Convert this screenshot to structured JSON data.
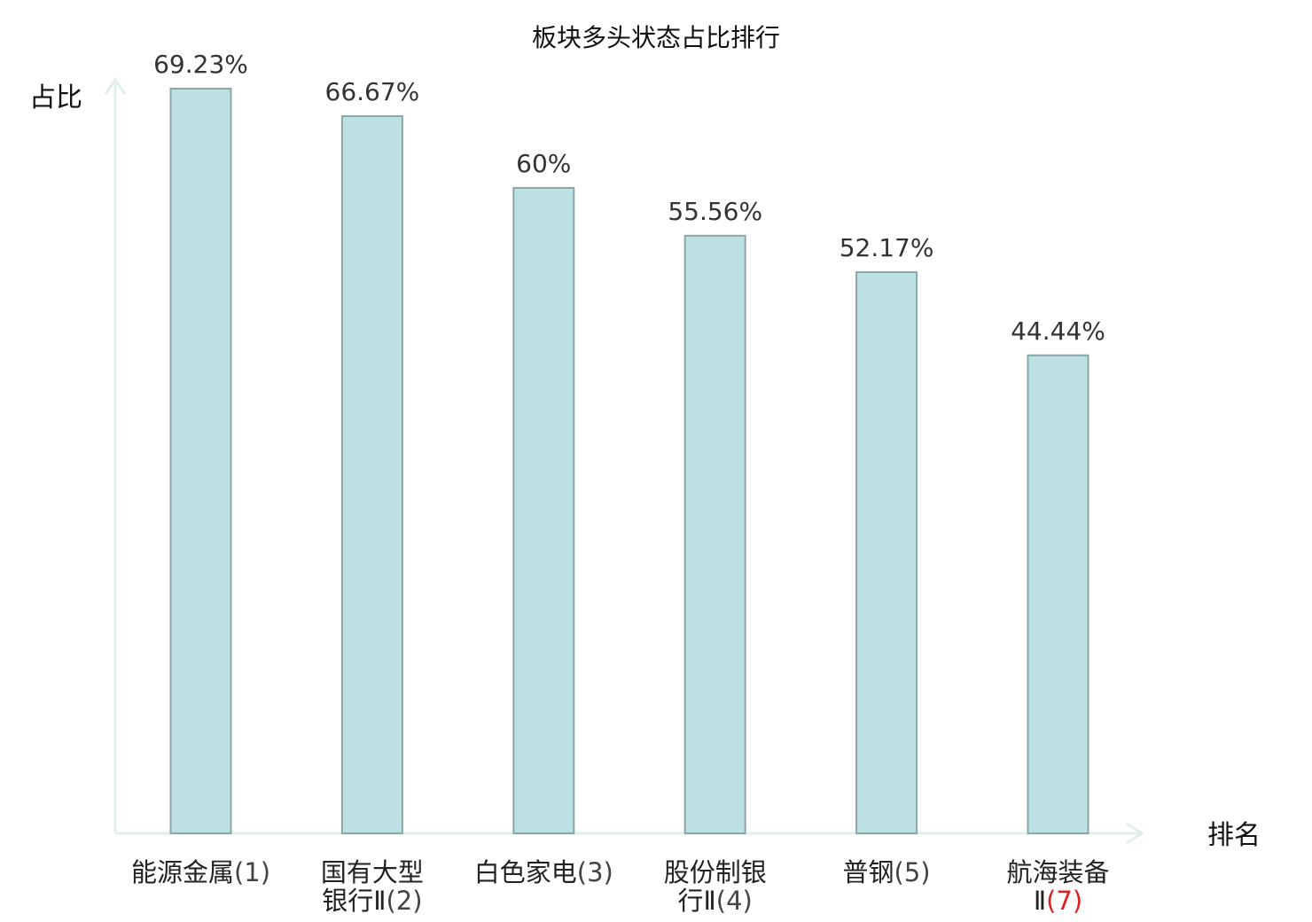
{
  "chart_data": {
    "type": "bar",
    "title": "板块多头状态占比排行",
    "xlabel": "排名",
    "ylabel": "占比",
    "categories": [
      {
        "name": "能源金属",
        "rank": "(1)",
        "highlight": false
      },
      {
        "name": "国有大型银行Ⅱ",
        "rank": "(2)",
        "highlight": false
      },
      {
        "name": "白色家电",
        "rank": "(3)",
        "highlight": false
      },
      {
        "name": "股份制银行Ⅱ",
        "rank": "(4)",
        "highlight": false
      },
      {
        "name": "普钢",
        "rank": "(5)",
        "highlight": false
      },
      {
        "name": "航海装备Ⅱ",
        "rank": "(7)",
        "highlight": true
      }
    ],
    "values": [
      69.23,
      66.67,
      60,
      55.56,
      52.17,
      44.44
    ],
    "value_labels": [
      "69.23%",
      "66.67%",
      "60%",
      "55.56%",
      "52.17%",
      "44.44%"
    ],
    "ylim": [
      0,
      69.23
    ],
    "grid": false,
    "legend": "none",
    "colors": {
      "bar_fill": "#bde0e3",
      "bar_stroke": "#8aa6a8",
      "axis": "#dff0ec",
      "text": "#222222",
      "highlight_text": "#e02020"
    }
  }
}
